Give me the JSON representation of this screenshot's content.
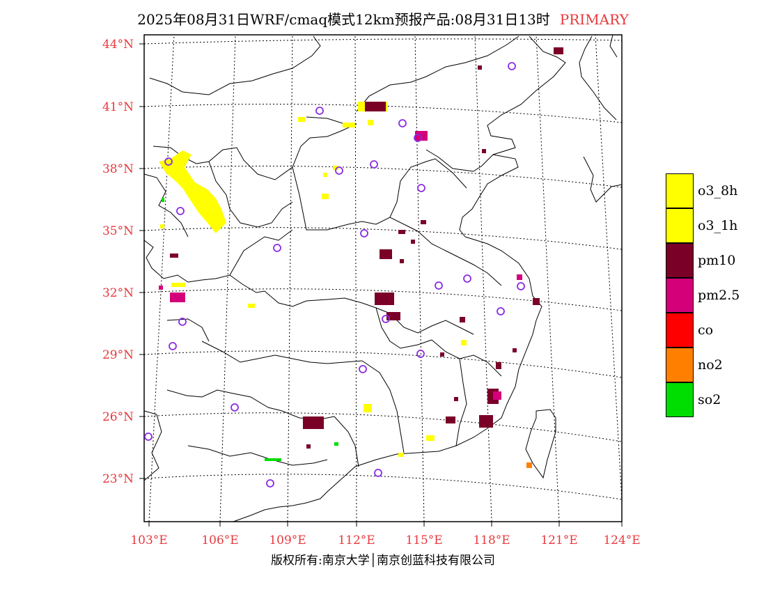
{
  "title": {
    "main": "2025年08月31日WRF/cmaq模式12km预报产品:08月31日13时",
    "accent": "PRIMARY"
  },
  "y_axis_labels": [
    "44°N",
    "41°N",
    "38°N",
    "35°N",
    "32°N",
    "29°N",
    "26°N",
    "23°N"
  ],
  "x_axis_labels": [
    "103°E",
    "106°E",
    "109°E",
    "112°E",
    "115°E",
    "118°E",
    "121°E",
    "124°E"
  ],
  "legend": {
    "items": [
      {
        "label": "o3_8h",
        "color": "#ffff00"
      },
      {
        "label": "o3_1h",
        "color": "#ffff00"
      },
      {
        "label": "pm10",
        "color": "#7a0028"
      },
      {
        "label": "pm2.5",
        "color": "#d4007a"
      },
      {
        "label": "co",
        "color": "#ff0000"
      },
      {
        "label": "no2",
        "color": "#ff8000"
      },
      {
        "label": "so2",
        "color": "#00dd00"
      }
    ]
  },
  "copyright": "版权所有:南京大学│南京创蓝科技有限公司",
  "colors": {
    "accent": "#e8383d",
    "station_marker": "#8a2be2",
    "o3": "#ffff00",
    "pm10": "#7a0028",
    "pm25": "#d4007a",
    "no2": "#ff8000",
    "so2": "#00dd00"
  }
}
